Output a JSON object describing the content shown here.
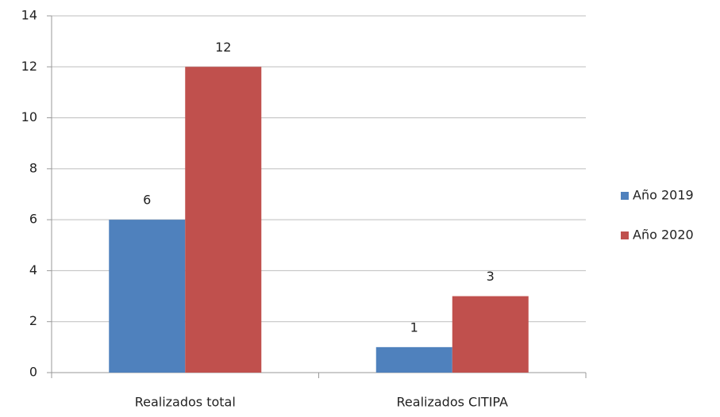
{
  "chart_data": {
    "type": "bar",
    "categories": [
      "Realizados total",
      "Realizados CITIPA"
    ],
    "series": [
      {
        "name": "Año 2019",
        "color": "#4f81bd",
        "values": [
          6,
          1
        ]
      },
      {
        "name": "Año 2020",
        "color": "#c0504d",
        "values": [
          12,
          3
        ]
      }
    ],
    "ylim": [
      0,
      14
    ],
    "yticks": [
      0,
      2,
      4,
      6,
      8,
      10,
      12,
      14
    ],
    "grid": true,
    "legend": "right"
  }
}
